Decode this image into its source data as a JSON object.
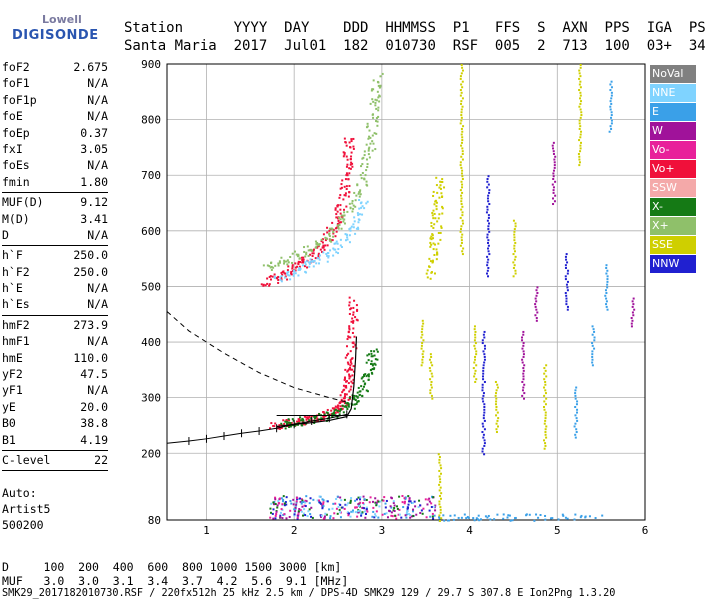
{
  "logo": {
    "line1": "Lowell",
    "line2": "DIGISONDE"
  },
  "header": {
    "labels": [
      "Station",
      "YYYY",
      "DAY",
      "DDD",
      "HHMMSS",
      "P1",
      "FFS",
      "S",
      "AXN",
      "PPS",
      "IGA",
      "PS"
    ],
    "values": [
      "Santa Maria",
      "2017",
      "Jul01",
      "182",
      "010730",
      "RSF",
      "005",
      "2",
      "713",
      "100",
      "03+",
      "34"
    ]
  },
  "params": [
    {
      "label": "foF2",
      "value": "2.675"
    },
    {
      "label": "foF1",
      "value": "N/A"
    },
    {
      "label": "foF1p",
      "value": "N/A"
    },
    {
      "label": "foE",
      "value": "N/A"
    },
    {
      "label": "foEp",
      "value": "0.37"
    },
    {
      "label": "fxI",
      "value": "3.05"
    },
    {
      "label": "foEs",
      "value": "N/A"
    },
    {
      "label": "fmin",
      "value": "1.80"
    },
    {
      "sep": true
    },
    {
      "label": "MUF(D)",
      "value": "9.12"
    },
    {
      "label": "M(D)",
      "value": "3.41"
    },
    {
      "label": "D",
      "value": "N/A"
    },
    {
      "sep": true
    },
    {
      "label": "h`F",
      "value": "250.0"
    },
    {
      "label": "h`F2",
      "value": "250.0"
    },
    {
      "label": "h`E",
      "value": "N/A"
    },
    {
      "label": "h`Es",
      "value": "N/A"
    },
    {
      "sep": true
    },
    {
      "label": "hmF2",
      "value": "273.9"
    },
    {
      "label": "hmF1",
      "value": "N/A"
    },
    {
      "label": "hmE",
      "value": "110.0"
    },
    {
      "label": "yF2",
      "value": "47.5"
    },
    {
      "label": "yF1",
      "value": "N/A"
    },
    {
      "label": "yE",
      "value": "20.0"
    },
    {
      "label": "B0",
      "value": "38.8"
    },
    {
      "label": "B1",
      "value": "4.19"
    },
    {
      "sep": true
    },
    {
      "label": "C-level",
      "value": "22"
    },
    {
      "sep": true
    }
  ],
  "auto": {
    "line1": "Auto:",
    "line2": "Artist5",
    "line3": "500200"
  },
  "legend": [
    {
      "name": "NoVal",
      "color": "#808080"
    },
    {
      "name": "NNE",
      "color": "#7fd3ff"
    },
    {
      "name": "E",
      "color": "#3aa0e8"
    },
    {
      "name": "W",
      "color": "#a0129a"
    },
    {
      "name": "Vo-",
      "color": "#e8209a"
    },
    {
      "name": "Vo+",
      "color": "#f0103a"
    },
    {
      "name": "SSW",
      "color": "#f4a9a9"
    },
    {
      "name": "X-",
      "color": "#157a15"
    },
    {
      "name": "X+",
      "color": "#8fc06a"
    },
    {
      "name": "SSE",
      "color": "#cfcf00"
    },
    {
      "name": "NNW",
      "color": "#2020d0"
    }
  ],
  "footer": {
    "d_label": "D",
    "d_values": [
      "100",
      "200",
      "400",
      "600",
      "800",
      "1000",
      "1500",
      "3000"
    ],
    "d_unit": "[km]",
    "muf_label": "MUF",
    "muf_values": [
      "3.0",
      "3.0",
      "3.1",
      "3.4",
      "3.7",
      "4.2",
      "5.6",
      "9.1"
    ],
    "muf_unit": "[MHz]",
    "file_line": "SMK29_2017182010730.RSF / 220fx512h 25 kHz 2.5 km / DPS-4D SMK29 129 / 29.7 S 307.8 E Ion2Png 1.3.20"
  },
  "chart_data": {
    "type": "scatter",
    "xlim": [
      0.55,
      6.0
    ],
    "ylim": [
      80,
      900
    ],
    "x_ticks": [
      1,
      2,
      3,
      4,
      5,
      6
    ],
    "y_ticks": [
      80,
      200,
      300,
      400,
      500,
      600,
      700,
      800,
      900
    ],
    "grid": true,
    "profile_line": [
      [
        0.55,
        218
      ],
      [
        0.8,
        222
      ],
      [
        1.0,
        226
      ],
      [
        1.2,
        231
      ],
      [
        1.4,
        236
      ],
      [
        1.6,
        240
      ],
      [
        1.8,
        245
      ],
      [
        2.0,
        252
      ],
      [
        2.2,
        258
      ],
      [
        2.4,
        263
      ],
      [
        2.6,
        270
      ]
    ],
    "model_curve": [
      [
        1.8,
        248
      ],
      [
        2.0,
        252
      ],
      [
        2.2,
        255
      ],
      [
        2.4,
        259
      ],
      [
        2.6,
        266
      ],
      [
        2.65,
        280
      ],
      [
        2.68,
        320
      ],
      [
        2.7,
        370
      ],
      [
        2.71,
        410
      ]
    ],
    "dashed_curve": [
      [
        0.55,
        455
      ],
      [
        0.8,
        420
      ],
      [
        1.2,
        380
      ],
      [
        1.6,
        345
      ],
      [
        2.0,
        318
      ],
      [
        2.4,
        300
      ],
      [
        2.6,
        292
      ]
    ],
    "hline": [
      [
        1.8,
        268
      ],
      [
        3.0,
        268
      ]
    ],
    "series": [
      {
        "name": "Vo+",
        "color": "#f0103a",
        "trace": [
          [
            1.75,
            250
          ],
          [
            2.0,
            257
          ],
          [
            2.2,
            263
          ],
          [
            2.4,
            272
          ],
          [
            2.55,
            290
          ],
          [
            2.6,
            320
          ],
          [
            2.63,
            360
          ],
          [
            2.66,
            420
          ],
          [
            2.68,
            480
          ]
        ]
      },
      {
        "name": "X-",
        "color": "#157a15",
        "trace": [
          [
            1.85,
            252
          ],
          [
            2.1,
            260
          ],
          [
            2.4,
            270
          ],
          [
            2.6,
            285
          ],
          [
            2.75,
            310
          ],
          [
            2.85,
            350
          ],
          [
            2.9,
            390
          ]
        ]
      },
      {
        "name": "Vo+",
        "color": "#f0103a",
        "trace": [
          [
            1.65,
            505
          ],
          [
            1.9,
            525
          ],
          [
            2.1,
            545
          ],
          [
            2.3,
            570
          ],
          [
            2.45,
            610
          ],
          [
            2.55,
            660
          ],
          [
            2.6,
            720
          ],
          [
            2.62,
            770
          ]
        ]
      },
      {
        "name": "X+",
        "color": "#8fc06a",
        "trace": [
          [
            1.7,
            535
          ],
          [
            2.0,
            555
          ],
          [
            2.3,
            580
          ],
          [
            2.55,
            620
          ],
          [
            2.75,
            680
          ],
          [
            2.85,
            750
          ],
          [
            2.9,
            820
          ],
          [
            2.95,
            880
          ]
        ]
      },
      {
        "name": "NNE",
        "color": "#7fd3ff",
        "trace": [
          [
            1.8,
            515
          ],
          [
            2.1,
            535
          ],
          [
            2.4,
            560
          ],
          [
            2.65,
            600
          ],
          [
            2.8,
            660
          ]
        ]
      },
      {
        "name": "SSE",
        "color": "#cfcf00",
        "trace": [
          [
            3.55,
            520
          ],
          [
            3.6,
            580
          ],
          [
            3.62,
            640
          ],
          [
            3.65,
            700
          ]
        ]
      },
      {
        "name": "E",
        "color": "#3aa0e8",
        "trace": [
          [
            3.6,
            85
          ],
          [
            4.2,
            85
          ],
          [
            4.8,
            85
          ],
          [
            5.5,
            85
          ]
        ]
      }
    ],
    "vertical_streaks": [
      {
        "x": 3.45,
        "y0": 360,
        "y1": 440,
        "color": "#cfcf00"
      },
      {
        "x": 3.55,
        "y0": 300,
        "y1": 380,
        "color": "#cfcf00"
      },
      {
        "x": 3.65,
        "y0": 80,
        "y1": 200,
        "color": "#cfcf00"
      },
      {
        "x": 3.9,
        "y0": 560,
        "y1": 900,
        "color": "#cfcf00"
      },
      {
        "x": 4.05,
        "y0": 330,
        "y1": 430,
        "color": "#cfcf00"
      },
      {
        "x": 4.15,
        "y0": 200,
        "y1": 420,
        "color": "#2020d0"
      },
      {
        "x": 4.2,
        "y0": 520,
        "y1": 700,
        "color": "#2020d0"
      },
      {
        "x": 4.3,
        "y0": 240,
        "y1": 330,
        "color": "#cfcf00"
      },
      {
        "x": 4.5,
        "y0": 520,
        "y1": 620,
        "color": "#cfcf00"
      },
      {
        "x": 4.6,
        "y0": 300,
        "y1": 420,
        "color": "#a0129a"
      },
      {
        "x": 4.75,
        "y0": 440,
        "y1": 500,
        "color": "#a0129a"
      },
      {
        "x": 4.85,
        "y0": 210,
        "y1": 360,
        "color": "#cfcf00"
      },
      {
        "x": 4.95,
        "y0": 650,
        "y1": 760,
        "color": "#a0129a"
      },
      {
        "x": 5.1,
        "y0": 460,
        "y1": 560,
        "color": "#2020d0"
      },
      {
        "x": 5.2,
        "y0": 230,
        "y1": 320,
        "color": "#3aa0e8"
      },
      {
        "x": 5.25,
        "y0": 720,
        "y1": 900,
        "color": "#cfcf00"
      },
      {
        "x": 5.4,
        "y0": 360,
        "y1": 430,
        "color": "#3aa0e8"
      },
      {
        "x": 5.55,
        "y0": 460,
        "y1": 540,
        "color": "#3aa0e8"
      },
      {
        "x": 5.6,
        "y0": 780,
        "y1": 870,
        "color": "#3aa0e8"
      },
      {
        "x": 5.85,
        "y0": 430,
        "y1": 480,
        "color": "#a0129a"
      }
    ],
    "bottom_cluster": {
      "x0": 1.7,
      "x1": 3.6,
      "y0": 84,
      "y1": 125,
      "colors": [
        "#2020d0",
        "#3aa0e8",
        "#7fd3ff",
        "#157a15",
        "#e8209a",
        "#a0129a"
      ]
    }
  }
}
